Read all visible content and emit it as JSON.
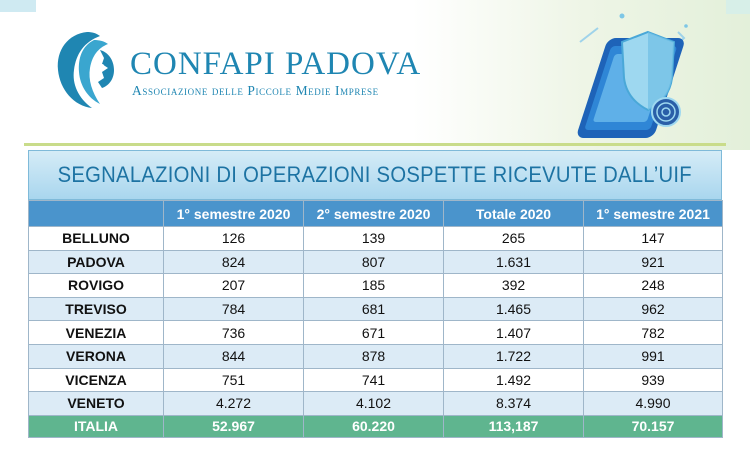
{
  "brand": {
    "name": "CONFAPI PADOVA",
    "subtitle": "Associazione delle Piccole Medie Imprese"
  },
  "colors": {
    "brand_blue": "#1f86b2",
    "header_row": "#4a94cc",
    "alt_row": "#dcebf6",
    "total_row": "#5fb58f",
    "accent_green": "#c9dc8a"
  },
  "icons": [
    "lion-logo-icon",
    "shield-phone-illustration"
  ],
  "table": {
    "title": "SEGNALAZIONI DI OPERAZIONI SOSPETTE RICEVUTE DALL’UIF",
    "headers": [
      "",
      "1° semestre 2020",
      "2° semestre 2020",
      "Totale 2020",
      "1° semestre 2021"
    ],
    "rows": [
      [
        "BELLUNO",
        "126",
        "139",
        "265",
        "147"
      ],
      [
        "PADOVA",
        "824",
        "807",
        "1.631",
        "921"
      ],
      [
        "ROVIGO",
        "207",
        "185",
        "392",
        "248"
      ],
      [
        "TREVISO",
        "784",
        "681",
        "1.465",
        "962"
      ],
      [
        "VENEZIA",
        "736",
        "671",
        "1.407",
        "782"
      ],
      [
        "VERONA",
        "844",
        "878",
        "1.722",
        "991"
      ],
      [
        "VICENZA",
        "751",
        "741",
        "1.492",
        "939"
      ],
      [
        "VENETO",
        "4.272",
        "4.102",
        "8.374",
        "4.990"
      ]
    ],
    "total_row": [
      "ITALIA",
      "52.967",
      "60.220",
      "113,187",
      "70.157"
    ]
  }
}
